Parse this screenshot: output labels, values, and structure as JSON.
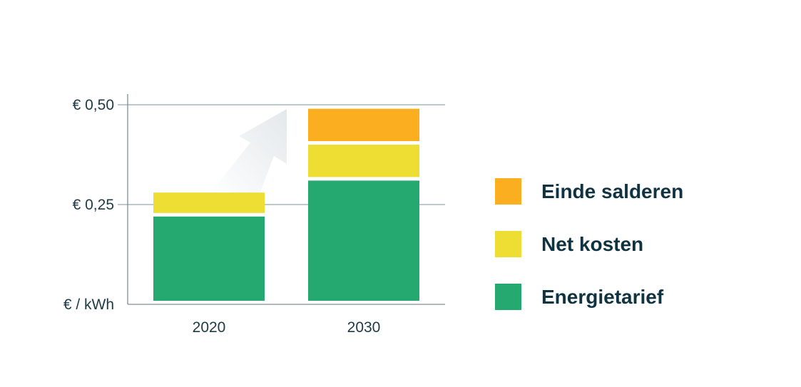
{
  "chart_data": {
    "type": "bar",
    "stacked": true,
    "categories": [
      "2020",
      "2030"
    ],
    "ylabel": "€ / kWh",
    "ylim": [
      0,
      0.5
    ],
    "yticks": [
      {
        "value": 0.5,
        "label": "€ 0,50"
      },
      {
        "value": 0.25,
        "label": "€ 0,25"
      }
    ],
    "grid": true,
    "legend_position": "right",
    "series": [
      {
        "name": "Energietarief",
        "color": "#25a970",
        "values": [
          0.22,
          0.31
        ]
      },
      {
        "name": "Net kosten",
        "color": "#eedd33",
        "values": [
          0.06,
          0.09
        ]
      },
      {
        "name": "Einde salderen",
        "color": "#faae20",
        "values": [
          0,
          0.09
        ]
      }
    ],
    "legend_order": [
      "Einde salderen",
      "Net kosten",
      "Energietarief"
    ]
  }
}
